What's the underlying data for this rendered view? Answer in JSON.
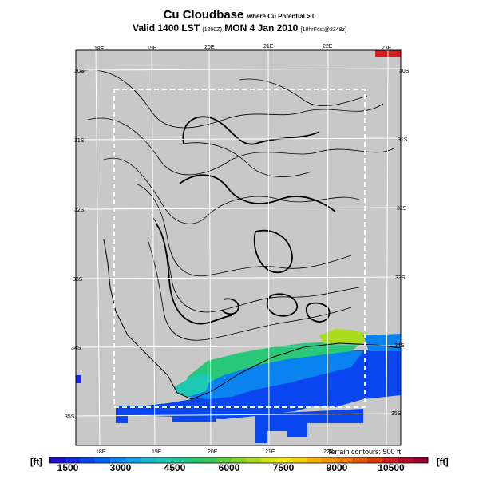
{
  "title": {
    "main": "Cu Cloudbase",
    "sub": "where Cu Potential > 0",
    "line2": "Valid 1400 LST",
    "run": "(1200Z)",
    "date": "MON 4 Jan 2010",
    "fcst": "[18hrFcst@2348z]"
  },
  "map": {
    "lon_labels_top": [
      "18E",
      "19E",
      "20E",
      "21E",
      "22E",
      "23E"
    ],
    "lon_labels_bottom": [
      "18E",
      "19E",
      "20E",
      "21E",
      "22E"
    ],
    "lat_labels_left": [
      "30S",
      "31S",
      "32S",
      "33S",
      "34S",
      "35S"
    ],
    "lat_labels_right": [
      "30S",
      "31S",
      "32S",
      "33S",
      "34S",
      "35S"
    ],
    "terrain_note": "Terrain contours: 500 ft",
    "background_color": "#c8c8c8",
    "window_color": "#ffffff"
  },
  "colorbar": {
    "unit_left": "[ft]",
    "unit_right": "[ft]",
    "labels": [
      "1500",
      "3000",
      "4500",
      "6000",
      "7500",
      "9000",
      "10500"
    ],
    "colors": [
      "#1e0fd2",
      "#1428e6",
      "#0a46f0",
      "#0064f5",
      "#0a82f0",
      "#14a0e6",
      "#1eb9d2",
      "#1ec8b4",
      "#1ec896",
      "#28c878",
      "#3cc85a",
      "#5ac83c",
      "#82d228",
      "#aadc1e",
      "#d2e614",
      "#f0e60a",
      "#fad200",
      "#fab400",
      "#f59600",
      "#f07800",
      "#e65a00",
      "#dc3c0a",
      "#d21e1e",
      "#b40a28",
      "#960032"
    ]
  }
}
